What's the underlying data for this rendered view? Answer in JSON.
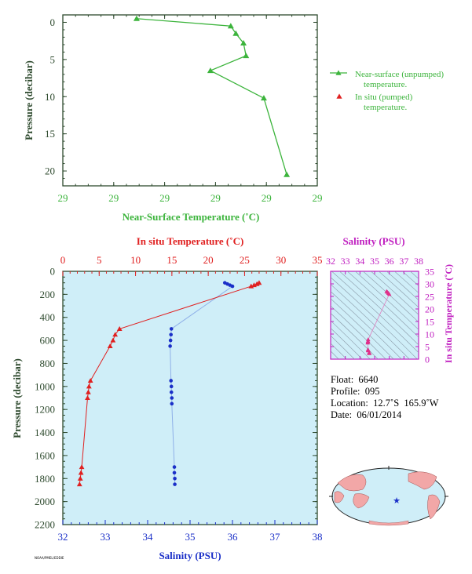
{
  "chart_data": [
    {
      "type": "line",
      "xlabel": "Near-Surface Temperature (˚C)",
      "ylabel": "Pressure (decibar)",
      "x_tick_labels": [
        "29",
        "29",
        "29",
        "29",
        "29",
        "29"
      ],
      "y_tick_labels": [
        "0",
        "5",
        "10",
        "15",
        "20"
      ],
      "xlim": [
        28.8,
        29.8
      ],
      "ylim": [
        22,
        -1
      ],
      "series": [
        {
          "name": "Near-surface (unpumped) temperature.",
          "color": "#3cb43c",
          "marker": "triangle",
          "x": [
            29.09,
            29.46,
            29.48,
            29.51,
            29.52,
            29.38,
            29.59,
            29.68
          ],
          "y": [
            -0.5,
            0.5,
            1.5,
            2.8,
            4.5,
            6.5,
            10.2,
            20.5
          ]
        }
      ],
      "legend": [
        {
          "label": "Near-surface (unpumped)",
          "label2": "temperature.",
          "color": "#3cb43c",
          "marker": "line-triangle"
        },
        {
          "label": "In situ (pumped)",
          "label2": "temperature.",
          "color": "#e02020",
          "marker": "triangle"
        }
      ]
    },
    {
      "type": "scatter",
      "ylabel": "Pressure (decibar)",
      "xlabel_bottom": "Salinity (PSU)",
      "xlabel_top": "In situ Temperature (˚C)",
      "salinity_ticks": [
        "32",
        "33",
        "34",
        "35",
        "36",
        "37",
        "38"
      ],
      "temperature_ticks": [
        "0",
        "5",
        "10",
        "15",
        "20",
        "25",
        "30",
        "35"
      ],
      "pressure_ticks": [
        "0",
        "200",
        "400",
        "600",
        "800",
        "1000",
        "1200",
        "1400",
        "1600",
        "1800",
        "2000",
        "2200"
      ],
      "salinity_lim": [
        32,
        38
      ],
      "temperature_lim": [
        0,
        35
      ],
      "pressure_lim": [
        2200,
        0
      ],
      "temperature_profile": {
        "name": "In situ temperature",
        "color": "#e02020",
        "marker": "triangle",
        "pressure": [
          100,
          110,
          120,
          130,
          500,
          550,
          600,
          650,
          950,
          1000,
          1050,
          1100,
          1700,
          1750,
          1800,
          1850
        ],
        "temperature": [
          27.0,
          26.7,
          26.3,
          25.9,
          7.8,
          7.2,
          6.9,
          6.5,
          3.8,
          3.6,
          3.5,
          3.4,
          2.6,
          2.5,
          2.4,
          2.3
        ]
      },
      "salinity_profile": {
        "name": "Salinity",
        "color": "#1a2fc8",
        "marker": "dot",
        "pressure": [
          100,
          110,
          120,
          130,
          500,
          550,
          600,
          650,
          950,
          1000,
          1050,
          1100,
          1150,
          1700,
          1750,
          1800,
          1850
        ],
        "salinity": [
          35.82,
          35.88,
          35.94,
          36.0,
          34.56,
          34.55,
          34.54,
          34.53,
          34.55,
          34.56,
          34.56,
          34.57,
          34.57,
          34.63,
          34.63,
          34.64,
          34.64
        ]
      }
    },
    {
      "type": "scatter",
      "xlabel": "Salinity (PSU)",
      "ylabel": "In situ Temperature (˚C)",
      "x_ticks": [
        "32",
        "33",
        "34",
        "35",
        "36",
        "37",
        "38"
      ],
      "y_ticks": [
        "0",
        "5",
        "10",
        "15",
        "20",
        "25",
        "30",
        "35"
      ],
      "xlim": [
        32,
        38
      ],
      "ylim": [
        0,
        35
      ],
      "points": {
        "salinity": [
          35.82,
          35.88,
          35.94,
          36.0,
          34.56,
          34.55,
          34.54,
          34.53,
          34.55,
          34.56,
          34.56,
          34.57,
          34.63,
          34.63,
          34.64,
          34.64
        ],
        "temperature": [
          27.0,
          26.7,
          26.3,
          25.9,
          7.8,
          7.2,
          6.9,
          6.5,
          3.8,
          3.6,
          3.5,
          3.4,
          2.6,
          2.5,
          2.4,
          2.3
        ]
      }
    }
  ],
  "float_info": {
    "float_label": "Float:",
    "float_value": "6640",
    "profile_label": "Profile:",
    "profile_value": "095",
    "location_label": "Location:",
    "location_value": "12.7˚S  165.9˚W",
    "date_label": "Date:",
    "date_value": "06/01/2014"
  },
  "credit": "NOAA/PMEL/EDDIE"
}
